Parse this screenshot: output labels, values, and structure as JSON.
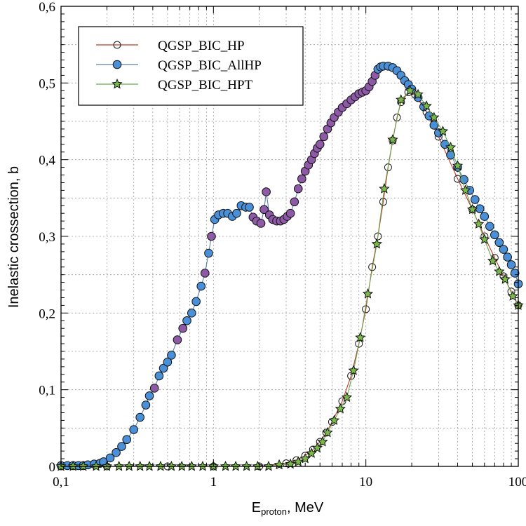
{
  "chart_data": {
    "type": "line",
    "xscale": "log",
    "xlim": [
      0.1,
      100
    ],
    "ylim": [
      0,
      0.6
    ],
    "grid": true,
    "legend_position": "top-left",
    "xlabel": {
      "main": "E",
      "sub": "proton",
      "suffix": ", MeV"
    },
    "ylabel": "Inelastic crossection,  b",
    "x_ticks": [
      {
        "value": 0.1,
        "label": "0,1"
      },
      {
        "value": 1,
        "label": "1"
      },
      {
        "value": 10,
        "label": "10"
      },
      {
        "value": 100,
        "label": "100"
      }
    ],
    "y_ticks": [
      {
        "value": 0,
        "label": "0"
      },
      {
        "value": 0.1,
        "label": "0,1"
      },
      {
        "value": 0.2,
        "label": "0,2"
      },
      {
        "value": 0.3,
        "label": "0,3"
      },
      {
        "value": 0.4,
        "label": "0,4"
      },
      {
        "value": 0.5,
        "label": "0,5"
      },
      {
        "value": 0.6,
        "label": "0,6"
      }
    ],
    "series": [
      {
        "name": "QGSP_BIC_HP",
        "color": "#c0392b",
        "marker": "open-circle",
        "points": [
          [
            0.1,
            0
          ],
          [
            0.2,
            0
          ],
          [
            0.5,
            0
          ],
          [
            1,
            0
          ],
          [
            2,
            0
          ],
          [
            3,
            0.004
          ],
          [
            3.5,
            0.008
          ],
          [
            4,
            0.014
          ],
          [
            4.5,
            0.022
          ],
          [
            5,
            0.032
          ],
          [
            5.5,
            0.044
          ],
          [
            6,
            0.058
          ],
          [
            7,
            0.085
          ],
          [
            8,
            0.118
          ],
          [
            9,
            0.16
          ],
          [
            10,
            0.205
          ],
          [
            11,
            0.26
          ],
          [
            12,
            0.3
          ],
          [
            13,
            0.345
          ],
          [
            14,
            0.39
          ],
          [
            15,
            0.425
          ],
          [
            16,
            0.455
          ],
          [
            17,
            0.475
          ],
          [
            19,
            0.488
          ],
          [
            21,
            0.485
          ],
          [
            25,
            0.462
          ],
          [
            30,
            0.43
          ],
          [
            40,
            0.375
          ],
          [
            50,
            0.335
          ],
          [
            60,
            0.3
          ],
          [
            70,
            0.272
          ],
          [
            80,
            0.248
          ],
          [
            90,
            0.228
          ],
          [
            100,
            0.21
          ]
        ]
      },
      {
        "name": "QGSP_BIC_AllHP",
        "color": "#4a90d9",
        "line_color": "#5a7fb0",
        "marker": "filled-circle",
        "points": [
          [
            0.1,
            0.001
          ],
          [
            0.11,
            0.001
          ],
          [
            0.12,
            0.001
          ],
          [
            0.13,
            0.001
          ],
          [
            0.14,
            0.001
          ],
          [
            0.15,
            0.002
          ],
          [
            0.165,
            0.003
          ],
          [
            0.18,
            0.004
          ],
          [
            0.19,
            0.006
          ],
          [
            0.21,
            0.011
          ],
          [
            0.23,
            0.018
          ],
          [
            0.25,
            0.026
          ],
          [
            0.27,
            0.035
          ],
          [
            0.3,
            0.048
          ],
          [
            0.33,
            0.064
          ],
          [
            0.36,
            0.08
          ],
          [
            0.38,
            0.092
          ],
          [
            0.41,
            0.102
          ],
          [
            0.44,
            0.118
          ],
          [
            0.47,
            0.128
          ],
          [
            0.5,
            0.136
          ],
          [
            0.53,
            0.145
          ],
          [
            0.58,
            0.165
          ],
          [
            0.63,
            0.18
          ],
          [
            0.67,
            0.19
          ],
          [
            0.72,
            0.2
          ],
          [
            0.77,
            0.215
          ],
          [
            0.83,
            0.235
          ],
          [
            0.88,
            0.252
          ],
          [
            0.93,
            0.278
          ],
          [
            0.97,
            0.3
          ],
          [
            1.02,
            0.322
          ],
          [
            1.08,
            0.328
          ],
          [
            1.16,
            0.33
          ],
          [
            1.24,
            0.33
          ],
          [
            1.33,
            0.326
          ],
          [
            1.42,
            0.33
          ],
          [
            1.52,
            0.34
          ],
          [
            1.63,
            0.338
          ],
          [
            1.72,
            0.338
          ],
          [
            1.82,
            0.325
          ],
          [
            1.92,
            0.32
          ],
          [
            2.05,
            0.317
          ],
          [
            2.15,
            0.335
          ],
          [
            2.22,
            0.358
          ],
          [
            2.33,
            0.328
          ],
          [
            2.45,
            0.322
          ],
          [
            2.6,
            0.32
          ],
          [
            2.75,
            0.32
          ],
          [
            2.9,
            0.322
          ],
          [
            3.05,
            0.326
          ],
          [
            3.2,
            0.33
          ],
          [
            3.4,
            0.345
          ],
          [
            3.6,
            0.362
          ],
          [
            3.8,
            0.375
          ],
          [
            4,
            0.385
          ],
          [
            4.2,
            0.393
          ],
          [
            4.4,
            0.4
          ],
          [
            4.6,
            0.408
          ],
          [
            4.8,
            0.415
          ],
          [
            5,
            0.42
          ],
          [
            5.3,
            0.43
          ],
          [
            5.6,
            0.44
          ],
          [
            5.9,
            0.448
          ],
          [
            6.2,
            0.455
          ],
          [
            6.6,
            0.462
          ],
          [
            7,
            0.468
          ],
          [
            7.5,
            0.473
          ],
          [
            8,
            0.478
          ],
          [
            8.5,
            0.482
          ],
          [
            9,
            0.486
          ],
          [
            9.5,
            0.488
          ],
          [
            10,
            0.49
          ],
          [
            10.5,
            0.495
          ],
          [
            11,
            0.502
          ],
          [
            11.5,
            0.51
          ],
          [
            12,
            0.518
          ],
          [
            12.5,
            0.521
          ],
          [
            13,
            0.522
          ],
          [
            14,
            0.522
          ],
          [
            15,
            0.52
          ],
          [
            16,
            0.516
          ],
          [
            17,
            0.51
          ],
          [
            18,
            0.503
          ],
          [
            19,
            0.498
          ],
          [
            20,
            0.492
          ],
          [
            22,
            0.481
          ],
          [
            24,
            0.469
          ],
          [
            26,
            0.457
          ],
          [
            28,
            0.445
          ],
          [
            30,
            0.435
          ],
          [
            33,
            0.42
          ],
          [
            36,
            0.406
          ],
          [
            40,
            0.39
          ],
          [
            44,
            0.374
          ],
          [
            48,
            0.36
          ],
          [
            52,
            0.348
          ],
          [
            56,
            0.336
          ],
          [
            60,
            0.326
          ],
          [
            65,
            0.313
          ],
          [
            70,
            0.302
          ],
          [
            75,
            0.292
          ],
          [
            80,
            0.283
          ],
          [
            85,
            0.273
          ],
          [
            90,
            0.263
          ],
          [
            95,
            0.252
          ],
          [
            100,
            0.238
          ]
        ]
      },
      {
        "name": "QGSP_BIC_HPT",
        "color": "#7bb84a",
        "line_color": "#6aa84f",
        "marker": "star",
        "points": [
          [
            0.1,
            0
          ],
          [
            0.12,
            0
          ],
          [
            0.14,
            0
          ],
          [
            0.17,
            0
          ],
          [
            0.2,
            0
          ],
          [
            0.24,
            0
          ],
          [
            0.28,
            0
          ],
          [
            0.33,
            0
          ],
          [
            0.38,
            0
          ],
          [
            0.45,
            0
          ],
          [
            0.53,
            0
          ],
          [
            0.62,
            0
          ],
          [
            0.72,
            0
          ],
          [
            0.85,
            0
          ],
          [
            1,
            0
          ],
          [
            1.2,
            0
          ],
          [
            1.4,
            0
          ],
          [
            1.65,
            0
          ],
          [
            1.95,
            0
          ],
          [
            2.3,
            0
          ],
          [
            2.7,
            0.002
          ],
          [
            3.2,
            0.003
          ],
          [
            3.6,
            0.006
          ],
          [
            4,
            0.01
          ],
          [
            4.4,
            0.017
          ],
          [
            4.8,
            0.024
          ],
          [
            5.2,
            0.032
          ],
          [
            5.6,
            0.044
          ],
          [
            6.2,
            0.06
          ],
          [
            6.8,
            0.075
          ],
          [
            7.5,
            0.09
          ],
          [
            8.3,
            0.125
          ],
          [
            9.2,
            0.168
          ],
          [
            10.3,
            0.225
          ],
          [
            11.8,
            0.29
          ],
          [
            13.2,
            0.362
          ],
          [
            15,
            0.426
          ],
          [
            17,
            0.478
          ],
          [
            19.5,
            0.49
          ],
          [
            22,
            0.485
          ],
          [
            25,
            0.47
          ],
          [
            28,
            0.455
          ],
          [
            32,
            0.437
          ],
          [
            36,
            0.416
          ],
          [
            40,
            0.392
          ],
          [
            45,
            0.36
          ],
          [
            50,
            0.335
          ],
          [
            55,
            0.316
          ],
          [
            60,
            0.296
          ],
          [
            68,
            0.268
          ],
          [
            75,
            0.254
          ],
          [
            82,
            0.244
          ],
          [
            92,
            0.222
          ],
          [
            100,
            0.21
          ]
        ]
      }
    ]
  }
}
